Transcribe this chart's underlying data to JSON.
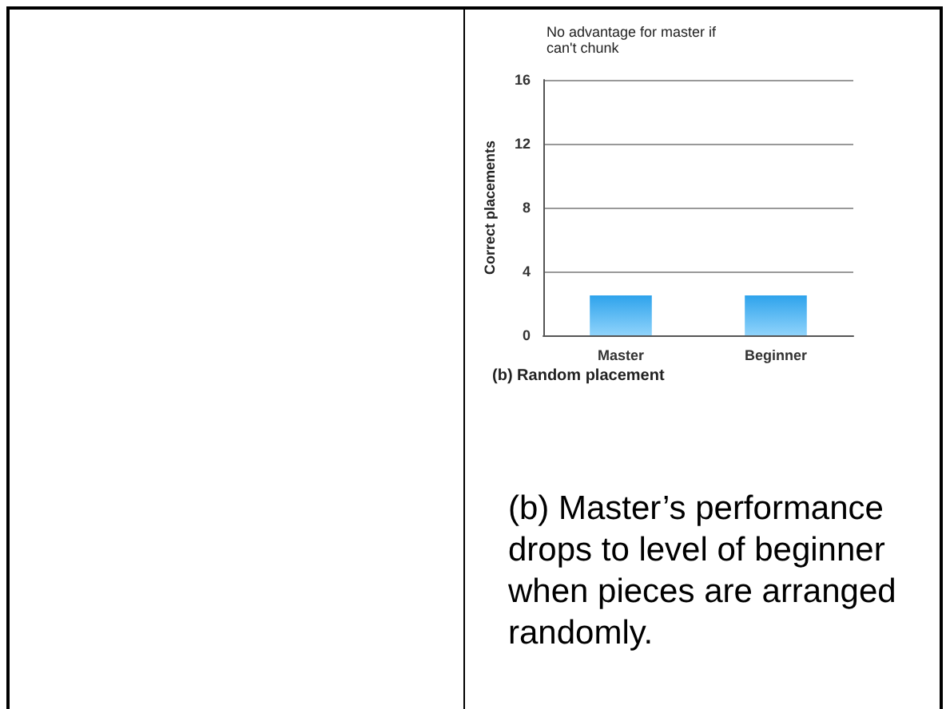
{
  "chart_data": {
    "type": "bar",
    "title": "No advantage for master if can't chunk",
    "ylabel": "Correct placements",
    "categories": [
      "Master",
      "Beginner"
    ],
    "values": [
      2.5,
      2.5
    ],
    "color": "#2ea3ec",
    "ylim": [
      0,
      16
    ],
    "yticks": [
      0,
      4,
      8,
      12,
      16
    ],
    "grid": "y",
    "annotations": [
      "(b) Random placement",
      "(b) Master’s performance drops to level of beginner when pieces are arranged randomly."
    ]
  }
}
